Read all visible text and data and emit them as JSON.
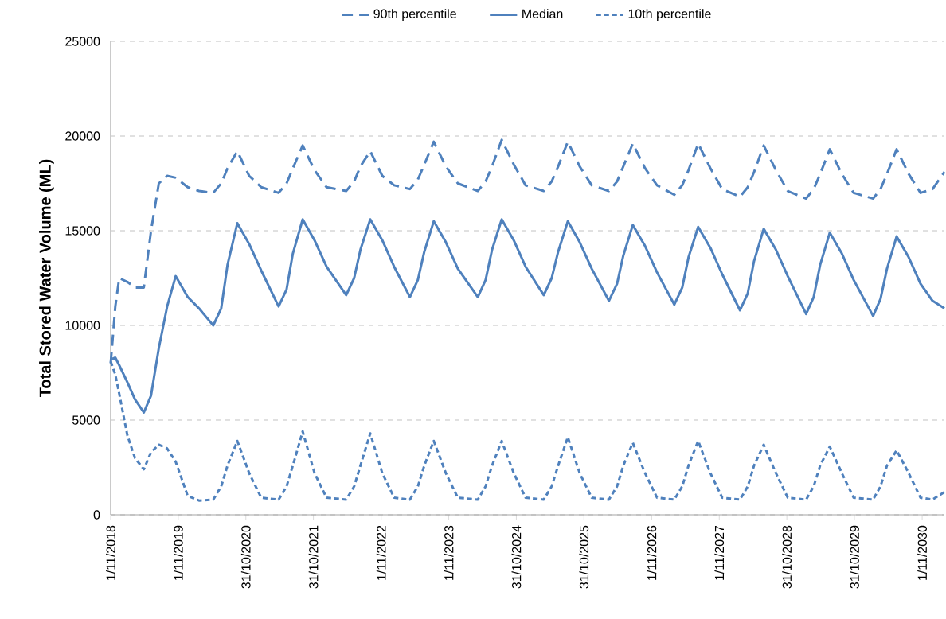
{
  "chart_data": {
    "type": "line",
    "ylabel": "Total Stored Water Volume (ML)",
    "x": [
      "2018-11-01",
      "2018-11-26",
      "2018-12-17",
      "2019-01-30",
      "2019-03-12",
      "2019-04-29",
      "2019-06-07",
      "2019-07-19",
      "2019-09-02",
      "2019-10-18",
      "2019-12-22",
      "2020-02-21",
      "2020-05-08",
      "2020-06-20",
      "2020-07-24",
      "2020-09-15",
      "2020-11-18",
      "2021-01-22",
      "2021-04-26",
      "2021-06-08",
      "2021-07-12",
      "2021-09-03",
      "2021-11-06",
      "2022-01-10",
      "2022-04-26",
      "2022-06-08",
      "2022-07-12",
      "2022-09-03",
      "2022-11-07",
      "2023-01-10",
      "2023-04-05",
      "2023-05-18",
      "2023-06-22",
      "2023-08-12",
      "2023-10-16",
      "2023-12-20",
      "2024-04-06",
      "2024-05-18",
      "2024-06-22",
      "2024-08-13",
      "2024-10-17",
      "2024-12-20",
      "2025-03-28",
      "2025-05-10",
      "2025-06-14",
      "2025-08-05",
      "2025-10-08",
      "2025-12-12",
      "2026-03-15",
      "2026-04-28",
      "2026-06-01",
      "2026-07-22",
      "2026-09-26",
      "2026-11-30",
      "2027-03-03",
      "2027-04-15",
      "2027-05-19",
      "2027-07-10",
      "2027-09-14",
      "2027-11-17",
      "2028-02-21",
      "2028-04-03",
      "2028-05-07",
      "2028-06-28",
      "2028-09-02",
      "2028-11-05",
      "2029-02-12",
      "2029-03-25",
      "2029-04-29",
      "2029-06-20",
      "2029-08-24",
      "2029-10-27",
      "2030-02-09",
      "2030-03-21",
      "2030-04-25",
      "2030-06-16",
      "2030-08-20",
      "2030-10-23",
      "2030-12-27",
      "2031-03-01"
    ],
    "series": [
      {
        "name": "90th percentile",
        "color": "#4f81bd",
        "line_style": "dashed",
        "values": [
          8000,
          11000,
          12500,
          12300,
          12000,
          12000,
          15000,
          17500,
          17900,
          17800,
          17300,
          17100,
          17000,
          17500,
          18300,
          19200,
          17900,
          17300,
          17000,
          17500,
          18300,
          19500,
          18200,
          17300,
          17100,
          17600,
          18400,
          19200,
          17900,
          17400,
          17200,
          17700,
          18500,
          19700,
          18400,
          17500,
          17100,
          17600,
          18400,
          19800,
          18500,
          17400,
          17100,
          17600,
          18400,
          19700,
          18400,
          17400,
          17100,
          17600,
          18400,
          19600,
          18300,
          17400,
          16900,
          17400,
          18200,
          19600,
          18300,
          17200,
          16800,
          17300,
          18100,
          19500,
          18200,
          17100,
          16700,
          17200,
          18000,
          19300,
          18000,
          17000,
          16700,
          17200,
          18000,
          19300,
          18000,
          17000,
          17200,
          18100
        ]
      },
      {
        "name": "Median",
        "color": "#4f81bd",
        "line_style": "solid",
        "values": [
          8200,
          8300,
          7900,
          7000,
          6100,
          5400,
          6300,
          8800,
          11000,
          12600,
          11500,
          10900,
          10000,
          10900,
          13200,
          15400,
          14300,
          12900,
          11000,
          11900,
          13800,
          15600,
          14500,
          13100,
          11600,
          12500,
          14000,
          15600,
          14500,
          13100,
          11500,
          12400,
          13900,
          15500,
          14400,
          13000,
          11500,
          12400,
          14000,
          15600,
          14500,
          13100,
          11600,
          12500,
          13900,
          15500,
          14400,
          13000,
          11300,
          12200,
          13700,
          15300,
          14200,
          12800,
          11100,
          12000,
          13600,
          15200,
          14100,
          12700,
          10800,
          11700,
          13400,
          15100,
          14000,
          12600,
          10600,
          11500,
          13200,
          14900,
          13800,
          12400,
          10500,
          11400,
          13000,
          14700,
          13600,
          12200,
          11300,
          10900
        ]
      },
      {
        "name": "10th percentile",
        "color": "#4f81bd",
        "line_style": "dotted",
        "values": [
          8100,
          7400,
          6400,
          4200,
          3000,
          2400,
          3300,
          3700,
          3500,
          2800,
          1000,
          750,
          800,
          1500,
          2600,
          3900,
          2200,
          900,
          800,
          1500,
          2600,
          4400,
          2200,
          900,
          800,
          1500,
          2600,
          4300,
          2200,
          900,
          800,
          1500,
          2600,
          3900,
          2200,
          900,
          800,
          1500,
          2600,
          3900,
          2200,
          900,
          800,
          1500,
          2600,
          4100,
          2200,
          900,
          800,
          1500,
          2600,
          3800,
          2200,
          900,
          800,
          1500,
          2600,
          3900,
          2200,
          900,
          800,
          1500,
          2600,
          3700,
          2200,
          900,
          800,
          1500,
          2600,
          3600,
          2200,
          900,
          800,
          1500,
          2600,
          3400,
          2200,
          900,
          800,
          1200
        ]
      }
    ],
    "xlim": [
      "2018-11-01",
      "2031-03-01"
    ],
    "xticks": [
      {
        "value": "2018-11-01",
        "label": "1/11/2018"
      },
      {
        "value": "2019-11-01",
        "label": "1/11/2019"
      },
      {
        "value": "2020-10-31",
        "label": "31/10/2020"
      },
      {
        "value": "2021-10-31",
        "label": "31/10/2021"
      },
      {
        "value": "2022-11-01",
        "label": "1/11/2022"
      },
      {
        "value": "2023-11-01",
        "label": "1/11/2023"
      },
      {
        "value": "2024-10-31",
        "label": "31/10/2024"
      },
      {
        "value": "2025-10-31",
        "label": "31/10/2025"
      },
      {
        "value": "2026-11-01",
        "label": "1/11/2026"
      },
      {
        "value": "2027-11-01",
        "label": "1/11/2027"
      },
      {
        "value": "2028-10-31",
        "label": "31/10/2028"
      },
      {
        "value": "2029-10-31",
        "label": "31/10/2029"
      },
      {
        "value": "2030-11-01",
        "label": "1/11/2030"
      }
    ],
    "ylim": [
      0,
      25000
    ],
    "yticks": [
      0,
      5000,
      10000,
      15000,
      20000,
      25000
    ],
    "grid": "y",
    "legend": "top",
    "marker": "none"
  }
}
